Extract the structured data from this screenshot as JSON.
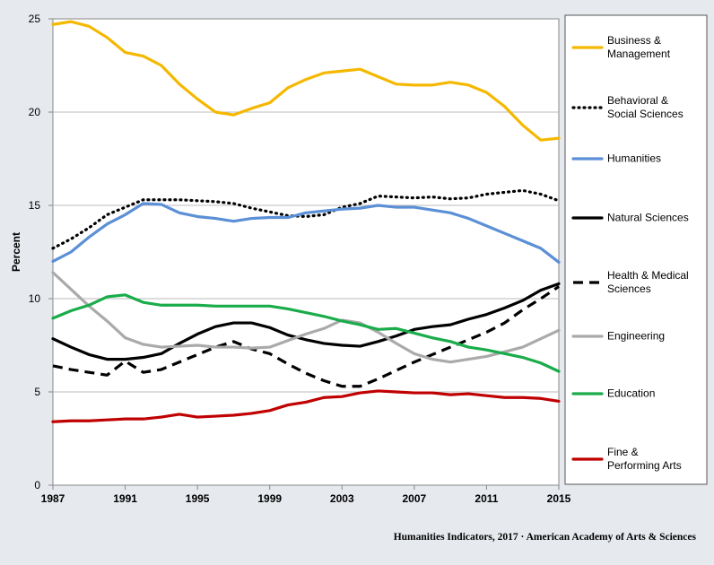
{
  "chart_data": {
    "type": "line",
    "y_label": "Percent",
    "footer": "Humanities Indicators, 2017 · American Academy of Arts & Sciences",
    "x": [
      1987,
      1988,
      1989,
      1990,
      1991,
      1992,
      1993,
      1994,
      1995,
      1996,
      1997,
      1998,
      1999,
      2000,
      2001,
      2002,
      2003,
      2004,
      2005,
      2006,
      2007,
      2008,
      2009,
      2010,
      2011,
      2012,
      2013,
      2014,
      2015
    ],
    "xlim": [
      1987,
      2015
    ],
    "xticks": [
      1987,
      1991,
      1995,
      1999,
      2003,
      2007,
      2011,
      2015
    ],
    "ylim": [
      0,
      25
    ],
    "yticks": [
      0,
      5,
      10,
      15,
      20,
      25
    ],
    "grid": true,
    "legend": "right",
    "series": [
      {
        "name": "Business &\nManagement",
        "color": "#f5b800",
        "dash": "solid",
        "values": [
          24.7,
          24.85,
          24.6,
          24.0,
          23.2,
          23.0,
          22.5,
          21.5,
          20.7,
          20.0,
          19.85,
          20.2,
          20.5,
          21.3,
          21.75,
          22.1,
          22.2,
          22.3,
          21.9,
          21.5,
          21.45,
          21.45,
          21.6,
          21.45,
          21.05,
          20.3,
          19.3,
          18.5,
          18.6
        ]
      },
      {
        "name": "Behavioral &\nSocial Sciences",
        "color": "#000000",
        "dash": "dotted",
        "values": [
          12.7,
          13.2,
          13.8,
          14.5,
          14.9,
          15.3,
          15.3,
          15.3,
          15.25,
          15.2,
          15.1,
          14.85,
          14.65,
          14.45,
          14.4,
          14.5,
          14.9,
          15.1,
          15.5,
          15.45,
          15.4,
          15.45,
          15.35,
          15.4,
          15.6,
          15.7,
          15.8,
          15.6,
          15.25
        ]
      },
      {
        "name": "Humanities",
        "color": "#5b8fd6",
        "dash": "solid",
        "values": [
          12.0,
          12.5,
          13.3,
          14.0,
          14.5,
          15.1,
          15.05,
          14.6,
          14.4,
          14.3,
          14.15,
          14.3,
          14.35,
          14.35,
          14.6,
          14.7,
          14.8,
          14.85,
          15.0,
          14.9,
          14.9,
          14.75,
          14.6,
          14.3,
          13.9,
          13.5,
          13.1,
          12.7,
          11.95
        ]
      },
      {
        "name": "Natural Sciences",
        "color": "#000000",
        "dash": "solid",
        "values": [
          7.85,
          7.4,
          7.0,
          6.75,
          6.75,
          6.85,
          7.05,
          7.6,
          8.1,
          8.5,
          8.7,
          8.7,
          8.45,
          8.05,
          7.8,
          7.6,
          7.5,
          7.45,
          7.7,
          8.0,
          8.35,
          8.5,
          8.6,
          8.9,
          9.15,
          9.5,
          9.9,
          10.45,
          10.8
        ]
      },
      {
        "name": "Health & Medical\nSciences",
        "color": "#000000",
        "dash": "dashed",
        "values": [
          6.4,
          6.2,
          6.05,
          5.9,
          6.65,
          6.05,
          6.2,
          6.6,
          7.0,
          7.4,
          7.7,
          7.3,
          7.05,
          6.5,
          6.0,
          5.6,
          5.3,
          5.3,
          5.7,
          6.15,
          6.6,
          7.0,
          7.4,
          7.8,
          8.2,
          8.7,
          9.4,
          10.0,
          10.65
        ]
      },
      {
        "name": "Engineering",
        "color": "#aaaaaa",
        "dash": "solid",
        "values": [
          11.4,
          10.5,
          9.6,
          8.8,
          7.9,
          7.55,
          7.4,
          7.45,
          7.5,
          7.4,
          7.4,
          7.35,
          7.4,
          7.75,
          8.1,
          8.4,
          8.85,
          8.7,
          8.2,
          7.6,
          7.05,
          6.75,
          6.6,
          6.75,
          6.9,
          7.15,
          7.4,
          7.85,
          8.3
        ]
      },
      {
        "name": "Education",
        "color": "#1aac4a",
        "dash": "solid",
        "values": [
          8.95,
          9.35,
          9.65,
          10.1,
          10.2,
          9.8,
          9.65,
          9.65,
          9.65,
          9.6,
          9.6,
          9.6,
          9.6,
          9.45,
          9.25,
          9.05,
          8.8,
          8.6,
          8.35,
          8.4,
          8.15,
          7.9,
          7.7,
          7.4,
          7.25,
          7.05,
          6.85,
          6.55,
          6.1
        ]
      },
      {
        "name": "Fine &\nPerforming Arts",
        "color": "#c00000",
        "dash": "solid",
        "values": [
          3.4,
          3.45,
          3.45,
          3.5,
          3.55,
          3.55,
          3.65,
          3.8,
          3.65,
          3.7,
          3.75,
          3.85,
          4.0,
          4.3,
          4.45,
          4.7,
          4.75,
          4.95,
          5.05,
          5.0,
          4.95,
          4.95,
          4.85,
          4.9,
          4.8,
          4.7,
          4.7,
          4.65,
          4.5
        ]
      }
    ]
  }
}
